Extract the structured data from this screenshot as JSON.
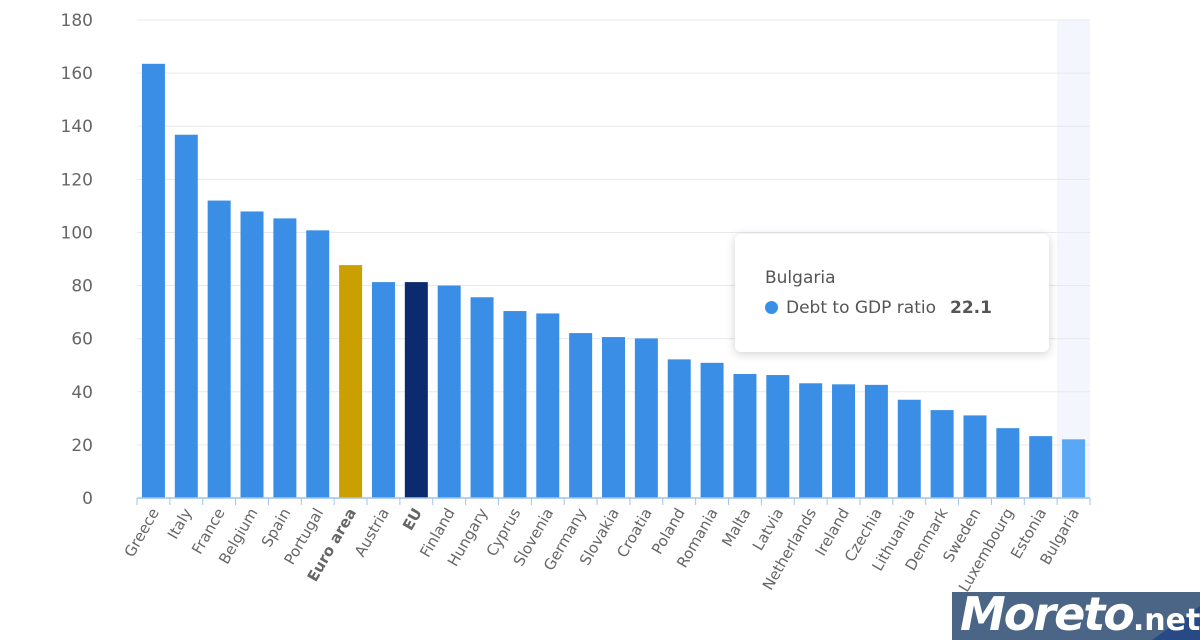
{
  "chart_data": {
    "type": "bar",
    "categories": [
      "Greece",
      "Italy",
      "France",
      "Belgium",
      "Spain",
      "Portugal",
      "Euro area",
      "Austria",
      "EU",
      "Finland",
      "Hungary",
      "Cyprus",
      "Slovenia",
      "Germany",
      "Slovakia",
      "Croatia",
      "Poland",
      "Romania",
      "Malta",
      "Latvia",
      "Netherlands",
      "Ireland",
      "Czechia",
      "Lithuania",
      "Denmark",
      "Sweden",
      "Luxembourg",
      "Estonia",
      "Bulgaria"
    ],
    "bold_categories": [
      "Euro area",
      "EU"
    ],
    "series": [
      {
        "name": "Debt to GDP ratio",
        "values": [
          163.5,
          136.8,
          112.0,
          107.9,
          105.3,
          100.8,
          87.7,
          81.3,
          81.3,
          80.0,
          75.6,
          70.4,
          69.5,
          62.1,
          60.6,
          60.1,
          52.2,
          50.9,
          46.7,
          46.3,
          43.2,
          42.8,
          42.6,
          37.0,
          33.1,
          31.1,
          26.3,
          23.3,
          22.1
        ]
      }
    ],
    "ylim": [
      0,
      180
    ],
    "yticks": [
      0,
      20,
      40,
      60,
      80,
      100,
      120,
      140,
      160,
      180
    ],
    "grid": true,
    "colors": {
      "default": "#3a8ee6",
      "Euro area": "#c9a000",
      "EU": "#0c2a6e",
      "hovered": "#5aa7f5",
      "hover_band": "#f3f6fc"
    },
    "title": "",
    "xlabel": "",
    "ylabel": ""
  },
  "tooltip": {
    "category": "Bulgaria",
    "series": "Debt to GDP ratio",
    "value": "22.1"
  },
  "watermark": {
    "text": "Moreto",
    "suffix": ".net"
  }
}
